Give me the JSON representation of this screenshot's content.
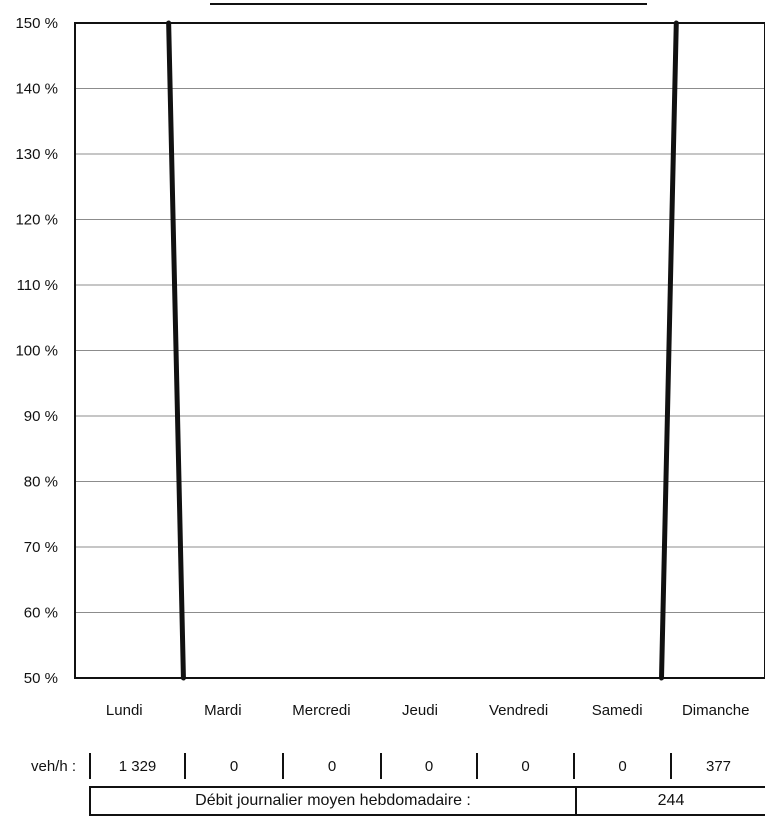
{
  "chart_data": {
    "type": "line",
    "yticks": [
      "150 %",
      "140 %",
      "130 %",
      "120 %",
      "110 %",
      "100 %",
      "90 %",
      "80 %",
      "70 %",
      "60 %",
      "50 %"
    ],
    "ylim": [
      50,
      150
    ],
    "categories": [
      "Lundi",
      "Mardi",
      "Mercredi",
      "Jeudi",
      "Vendredi",
      "Samedi",
      "Dimanche"
    ],
    "grid": true,
    "series": [
      {
        "values": [
          150,
          50,
          null,
          null,
          null,
          50,
          150
        ]
      }
    ]
  },
  "table": {
    "row_label": "veh/h :",
    "values": [
      "1 329",
      "0",
      "0",
      "0",
      "0",
      "0",
      "377"
    ]
  },
  "footer": {
    "label": "Débit journalier moyen hebdomadaire :",
    "value": "244"
  }
}
